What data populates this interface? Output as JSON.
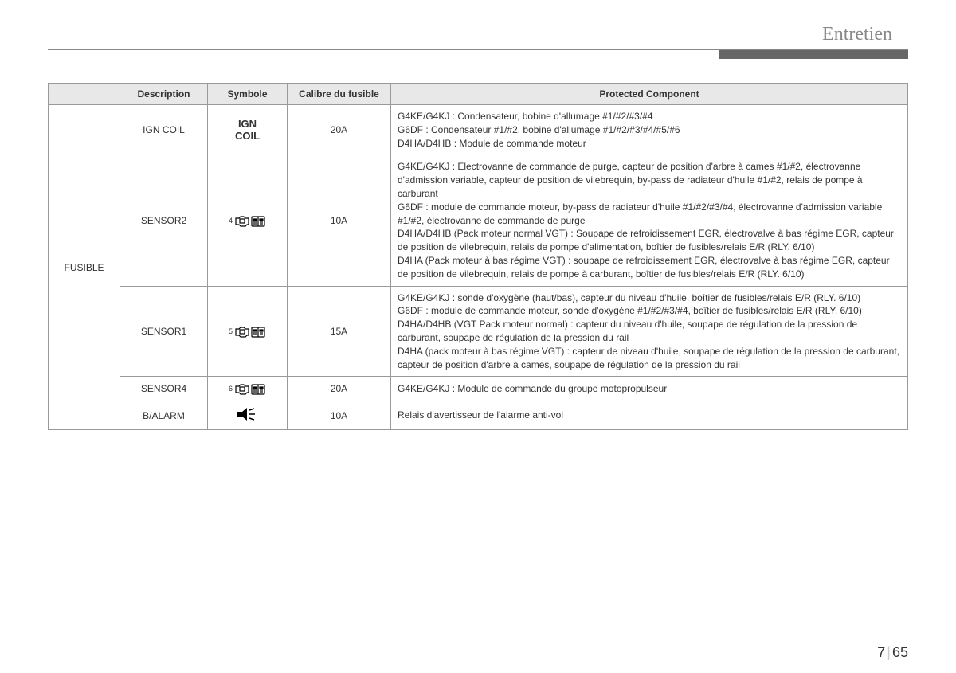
{
  "header": {
    "section_title": "Entretien"
  },
  "table": {
    "headers": {
      "category_blank": "",
      "description": "Description",
      "symbole": "Symbole",
      "calibre": "Calibre du fusible",
      "protected": "Protected Component"
    },
    "category_label": "FUSIBLE",
    "rows": [
      {
        "description": "IGN COIL",
        "symbol_text": "IGN\nCOIL",
        "symbol_type": "text",
        "calibre": "20A",
        "component": "G4KE/G4KJ : Condensateur, bobine d'allumage #1/#2/#3/#4\nG6DF : Condensateur #1/#2, bobine d'allumage #1/#2/#3/#4/#5/#6\nD4HA/D4HB : Module de commande moteur"
      },
      {
        "description": "SENSOR2",
        "symbol_sup": "4",
        "symbol_type": "icon",
        "calibre": "10A",
        "component": "G4KE/G4KJ : Electrovanne de commande de purge, capteur de position d'arbre à cames #1/#2, électrovanne d'admission variable, capteur de position de vilebrequin, by-pass de radiateur d'huile #1/#2, relais de pompe à carburant\nG6DF : module de commande moteur, by-pass de radiateur d'huile #1/#2/#3/#4, électrovanne d'admission variable #1/#2, électrovanne de commande de purge\nD4HA/D4HB (Pack moteur normal VGT) : Soupape de refroidissement EGR, électrovalve à bas régime EGR, capteur de position de vilebrequin, relais de pompe d'alimentation, boîtier de fusibles/relais E/R (RLY. 6/10)\nD4HA (Pack moteur à bas régime VGT) : soupape de refroidissement EGR, électrovalve à bas régime EGR, capteur de position de vilebrequin, relais de pompe à carburant, boîtier de fusibles/relais E/R (RLY. 6/10)"
      },
      {
        "description": "SENSOR1",
        "symbol_sup": "5",
        "symbol_type": "icon",
        "calibre": "15A",
        "component": "G4KE/G4KJ : sonde d'oxygène (haut/bas), capteur du niveau d'huile, boîtier de fusibles/relais E/R (RLY. 6/10)\nG6DF : module de commande moteur, sonde d'oxygène #1/#2/#3/#4, boîtier de fusibles/relais E/R (RLY. 6/10)\nD4HA/D4HB (VGT Pack moteur normal) : capteur du niveau d'huile, soupape de régulation de la pression de carburant, soupape de régulation de la pression du rail\nD4HA (pack moteur à bas régime VGT) : capteur de niveau d'huile, soupape de régulation de la pression de carburant, capteur de position d'arbre à cames, soupape de régulation de la pression du rail"
      },
      {
        "description": "SENSOR4",
        "symbol_sup": "6",
        "symbol_type": "icon",
        "calibre": "20A",
        "component": "G4KE/G4KJ : Module de commande du groupe motopropulseur"
      },
      {
        "description": "B/ALARM",
        "symbol_type": "speaker",
        "calibre": "10A",
        "component": "Relais d'avertisseur de l'alarme anti-vol"
      }
    ]
  },
  "footer": {
    "chapter": "7",
    "page": "65"
  }
}
